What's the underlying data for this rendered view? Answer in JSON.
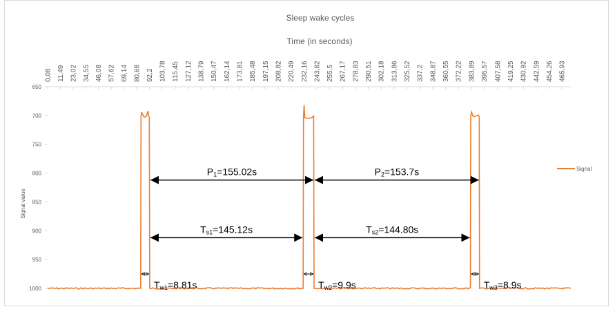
{
  "chart_data": {
    "type": "line",
    "title": "Sleep wake cycles",
    "xlabel": "Time (in seconds)",
    "ylabel": "Signal value",
    "x_axis_position": "top",
    "y_inverted": true,
    "ylim": [
      650,
      1000
    ],
    "yticks": [
      650,
      700,
      750,
      800,
      850,
      900,
      950,
      1000
    ],
    "xlim": [
      0,
      474
    ],
    "xtick_labels": [
      "0,08",
      "11,49",
      "23,02",
      "34,55",
      "46,08",
      "57,62",
      "69,14",
      "80,68",
      "92,2",
      "103,78",
      "115,45",
      "127,12",
      "138,79",
      "150,47",
      "162,14",
      "173,81",
      "185,48",
      "197,15",
      "208,82",
      "220,49",
      "232,16",
      "243,82",
      "255,5",
      "267,17",
      "278,83",
      "290,51",
      "302,18",
      "313,86",
      "325,52",
      "337,2",
      "348,87",
      "360,55",
      "372,22",
      "383,89",
      "395,57",
      "407,58",
      "419,25",
      "430,92",
      "442,59",
      "454,26",
      "465,93"
    ],
    "xtick_values": [
      0.08,
      11.49,
      23.02,
      34.55,
      46.08,
      57.62,
      69.14,
      80.68,
      92.2,
      103.78,
      115.45,
      127.12,
      138.79,
      150.47,
      162.14,
      173.81,
      185.48,
      197.15,
      208.82,
      220.49,
      232.16,
      243.82,
      255.5,
      267.17,
      278.83,
      290.51,
      302.18,
      313.86,
      325.52,
      337.2,
      348.87,
      360.55,
      372.22,
      383.89,
      395.57,
      407.58,
      419.25,
      430.92,
      442.59,
      454.26,
      465.93
    ],
    "grid": false,
    "legend": "right",
    "series": [
      {
        "name": "Signal",
        "color": "#ED7D31",
        "baseline": 1000,
        "points": [
          [
            0,
            1000
          ],
          [
            84.3,
            1000
          ],
          [
            84.6,
            702
          ],
          [
            85.2,
            694
          ],
          [
            86.0,
            698
          ],
          [
            87.5,
            703
          ],
          [
            89.5,
            701
          ],
          [
            91.0,
            692
          ],
          [
            91.6,
            702
          ],
          [
            92.1,
            703
          ],
          [
            92.5,
            1000
          ],
          [
            231.5,
            1000
          ],
          [
            231.8,
            702
          ],
          [
            232.4,
            682
          ],
          [
            233.0,
            704
          ],
          [
            236.0,
            705
          ],
          [
            239.0,
            704
          ],
          [
            240.5,
            702
          ],
          [
            241.0,
            701
          ],
          [
            241.4,
            1000
          ],
          [
            383.0,
            1000
          ],
          [
            383.3,
            700
          ],
          [
            384.0,
            694
          ],
          [
            385.5,
            702
          ],
          [
            388.0,
            701
          ],
          [
            390.0,
            699
          ],
          [
            391.0,
            702
          ],
          [
            391.3,
            1000
          ],
          [
            474,
            1000
          ]
        ]
      }
    ],
    "annotations": [
      {
        "main": "P",
        "sub": "1",
        "value": "=155.02s",
        "y": 812,
        "x1": 92.5,
        "x2": 241.4
      },
      {
        "main": "P",
        "sub": "2",
        "value": "=153.7s",
        "y": 812,
        "x1": 241.4,
        "x2": 391.3
      },
      {
        "main": "T",
        "sub": "s1",
        "value": "=145.12s",
        "y": 912,
        "x1": 92.5,
        "x2": 231.5
      },
      {
        "main": "T",
        "sub": "s2",
        "value": "=144.80s",
        "y": 912,
        "x1": 241.4,
        "x2": 383.0
      },
      {
        "main": "T",
        "sub": "w1",
        "value": "=8.81s",
        "y": 975,
        "x1": 84.3,
        "x2": 92.5
      },
      {
        "main": "T",
        "sub": "w2",
        "value": "=9.9s",
        "y": 975,
        "x1": 231.5,
        "x2": 241.4
      },
      {
        "main": "T",
        "sub": "w3",
        "value": "=8.9s",
        "y": 975,
        "x1": 383.0,
        "x2": 391.3
      }
    ]
  }
}
